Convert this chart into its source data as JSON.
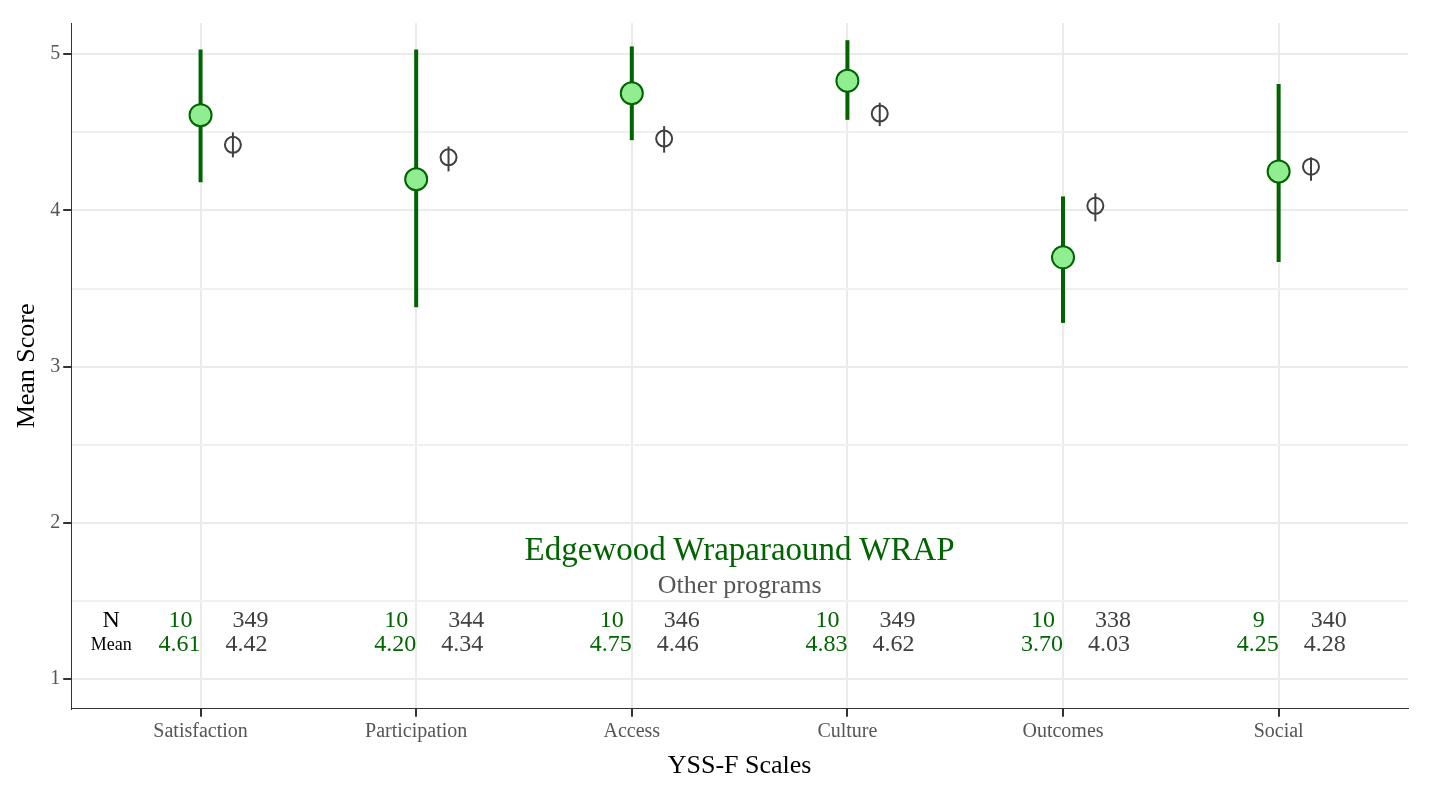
{
  "chart_data": {
    "type": "scatter",
    "xlabel": "YSS-F Scales",
    "ylabel": "Mean Score",
    "categories": [
      "Satisfaction",
      "Participation",
      "Access",
      "Culture",
      "Outcomes",
      "Social"
    ],
    "series": [
      {
        "name": "Edgewood Wraparaound WRAP",
        "color": "#90ee90",
        "values": [
          4.61,
          4.2,
          4.75,
          4.83,
          3.7,
          4.25
        ],
        "errors": [
          [
            4.18,
            5.03
          ],
          [
            3.38,
            5.03
          ],
          [
            4.45,
            5.05
          ],
          [
            4.58,
            5.09
          ],
          [
            3.28,
            4.09
          ],
          [
            3.67,
            4.81
          ]
        ]
      },
      {
        "name": "Other programs",
        "color": "#404040",
        "values": [
          4.42,
          4.34,
          4.46,
          4.62,
          4.03,
          4.28
        ],
        "errors": [
          [
            4.34,
            4.5
          ],
          [
            4.25,
            4.41
          ],
          [
            4.37,
            4.54
          ],
          [
            4.54,
            4.69
          ],
          [
            3.93,
            4.11
          ],
          [
            4.19,
            4.34
          ]
        ]
      }
    ],
    "ylim": [
      0.81,
      5.2
    ],
    "yticks": [
      1,
      {
        "value": 1.5,
        "label": null
      },
      2,
      {
        "value": 2.5,
        "label": null
      },
      3,
      {
        "value": 3.5,
        "label": null
      },
      4,
      {
        "value": 4.5,
        "label": null
      },
      5
    ],
    "grid": true,
    "legend": false,
    "annotations": [
      "N",
      "Mean",
      "10",
      "349",
      "4.61",
      "4.42",
      "10",
      "344",
      "4.20",
      "4.34",
      "10",
      "346",
      "4.75",
      "4.46",
      "10",
      "349",
      "4.83",
      "4.62",
      "10",
      "338",
      "3.70",
      "4.03",
      "9",
      "340",
      "4.25",
      "4.28"
    ]
  }
}
